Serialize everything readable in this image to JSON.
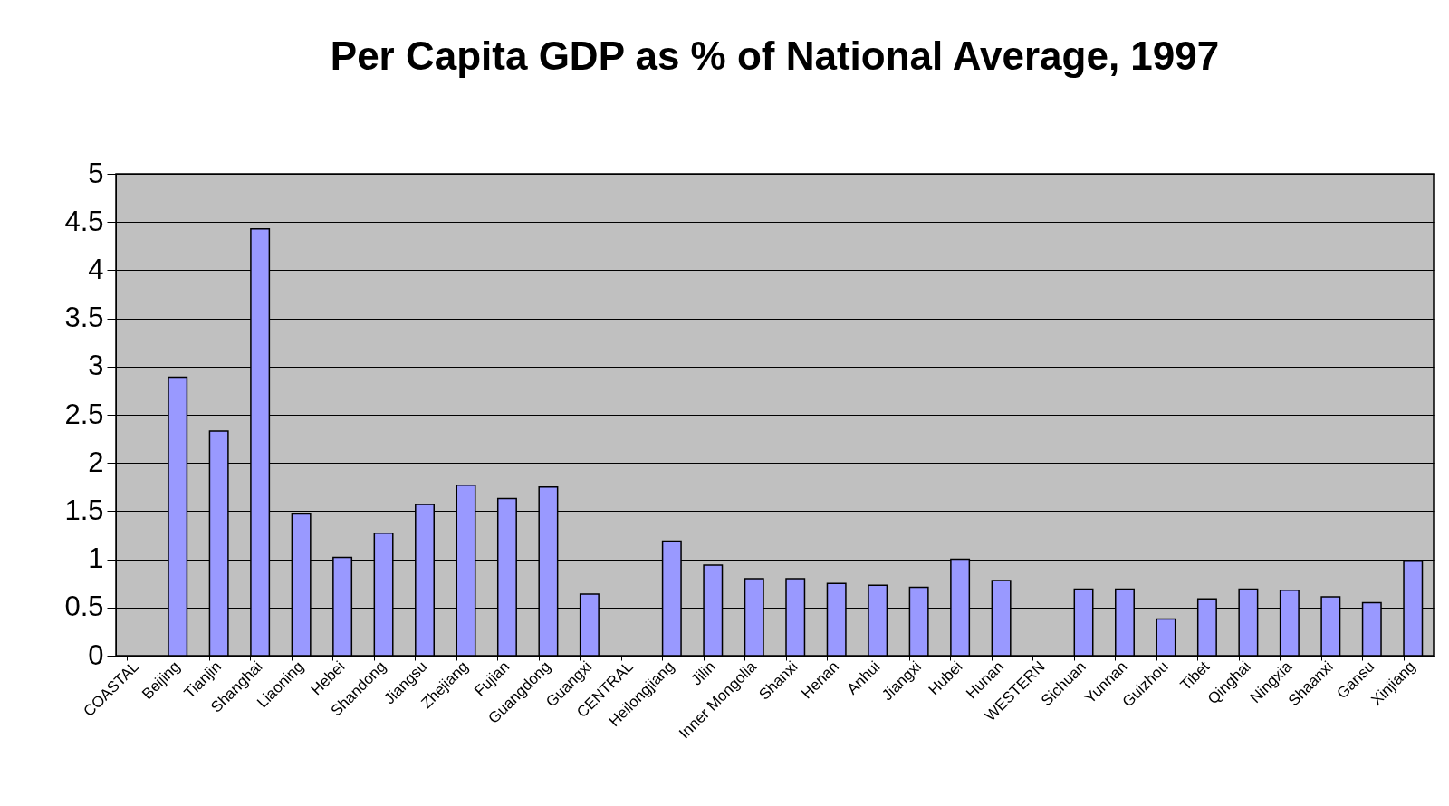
{
  "chart_data": {
    "type": "bar",
    "title": "Per Capita GDP as % of National Average, 1997",
    "categories": [
      "COASTAL",
      "Beijing",
      "Tianjin",
      "Shanghai",
      "Liaoning",
      "Hebei",
      "Shandong",
      "Jiangsu",
      "Zhejiang",
      "Fujian",
      "Guangdong",
      "Guangxi",
      "CENTRAL",
      "Heilongjiang",
      "Jilin",
      "Inner Mongolia",
      "Shanxi",
      "Henan",
      "Anhui",
      "Jiangxi",
      "Hubei",
      "Hunan",
      "WESTERN",
      "Sichuan",
      "Yunnan",
      "Guizhou",
      "Tibet",
      "Qinghai",
      "Ningxia",
      "Shaanxi",
      "Gansu",
      "Xinjiang"
    ],
    "values": [
      null,
      2.89,
      2.33,
      4.43,
      1.47,
      1.02,
      1.27,
      1.57,
      1.77,
      1.63,
      1.75,
      0.64,
      null,
      1.19,
      0.94,
      0.8,
      0.8,
      0.75,
      0.73,
      0.71,
      1.0,
      0.78,
      null,
      0.69,
      0.69,
      0.38,
      0.59,
      0.69,
      0.68,
      0.61,
      0.55,
      0.98
    ],
    "color": "#9999ff",
    "ylim": [
      0,
      5
    ],
    "yticks": [
      0,
      0.5,
      1,
      1.5,
      2,
      2.5,
      3,
      3.5,
      4,
      4.5,
      5
    ],
    "grid": "y"
  }
}
